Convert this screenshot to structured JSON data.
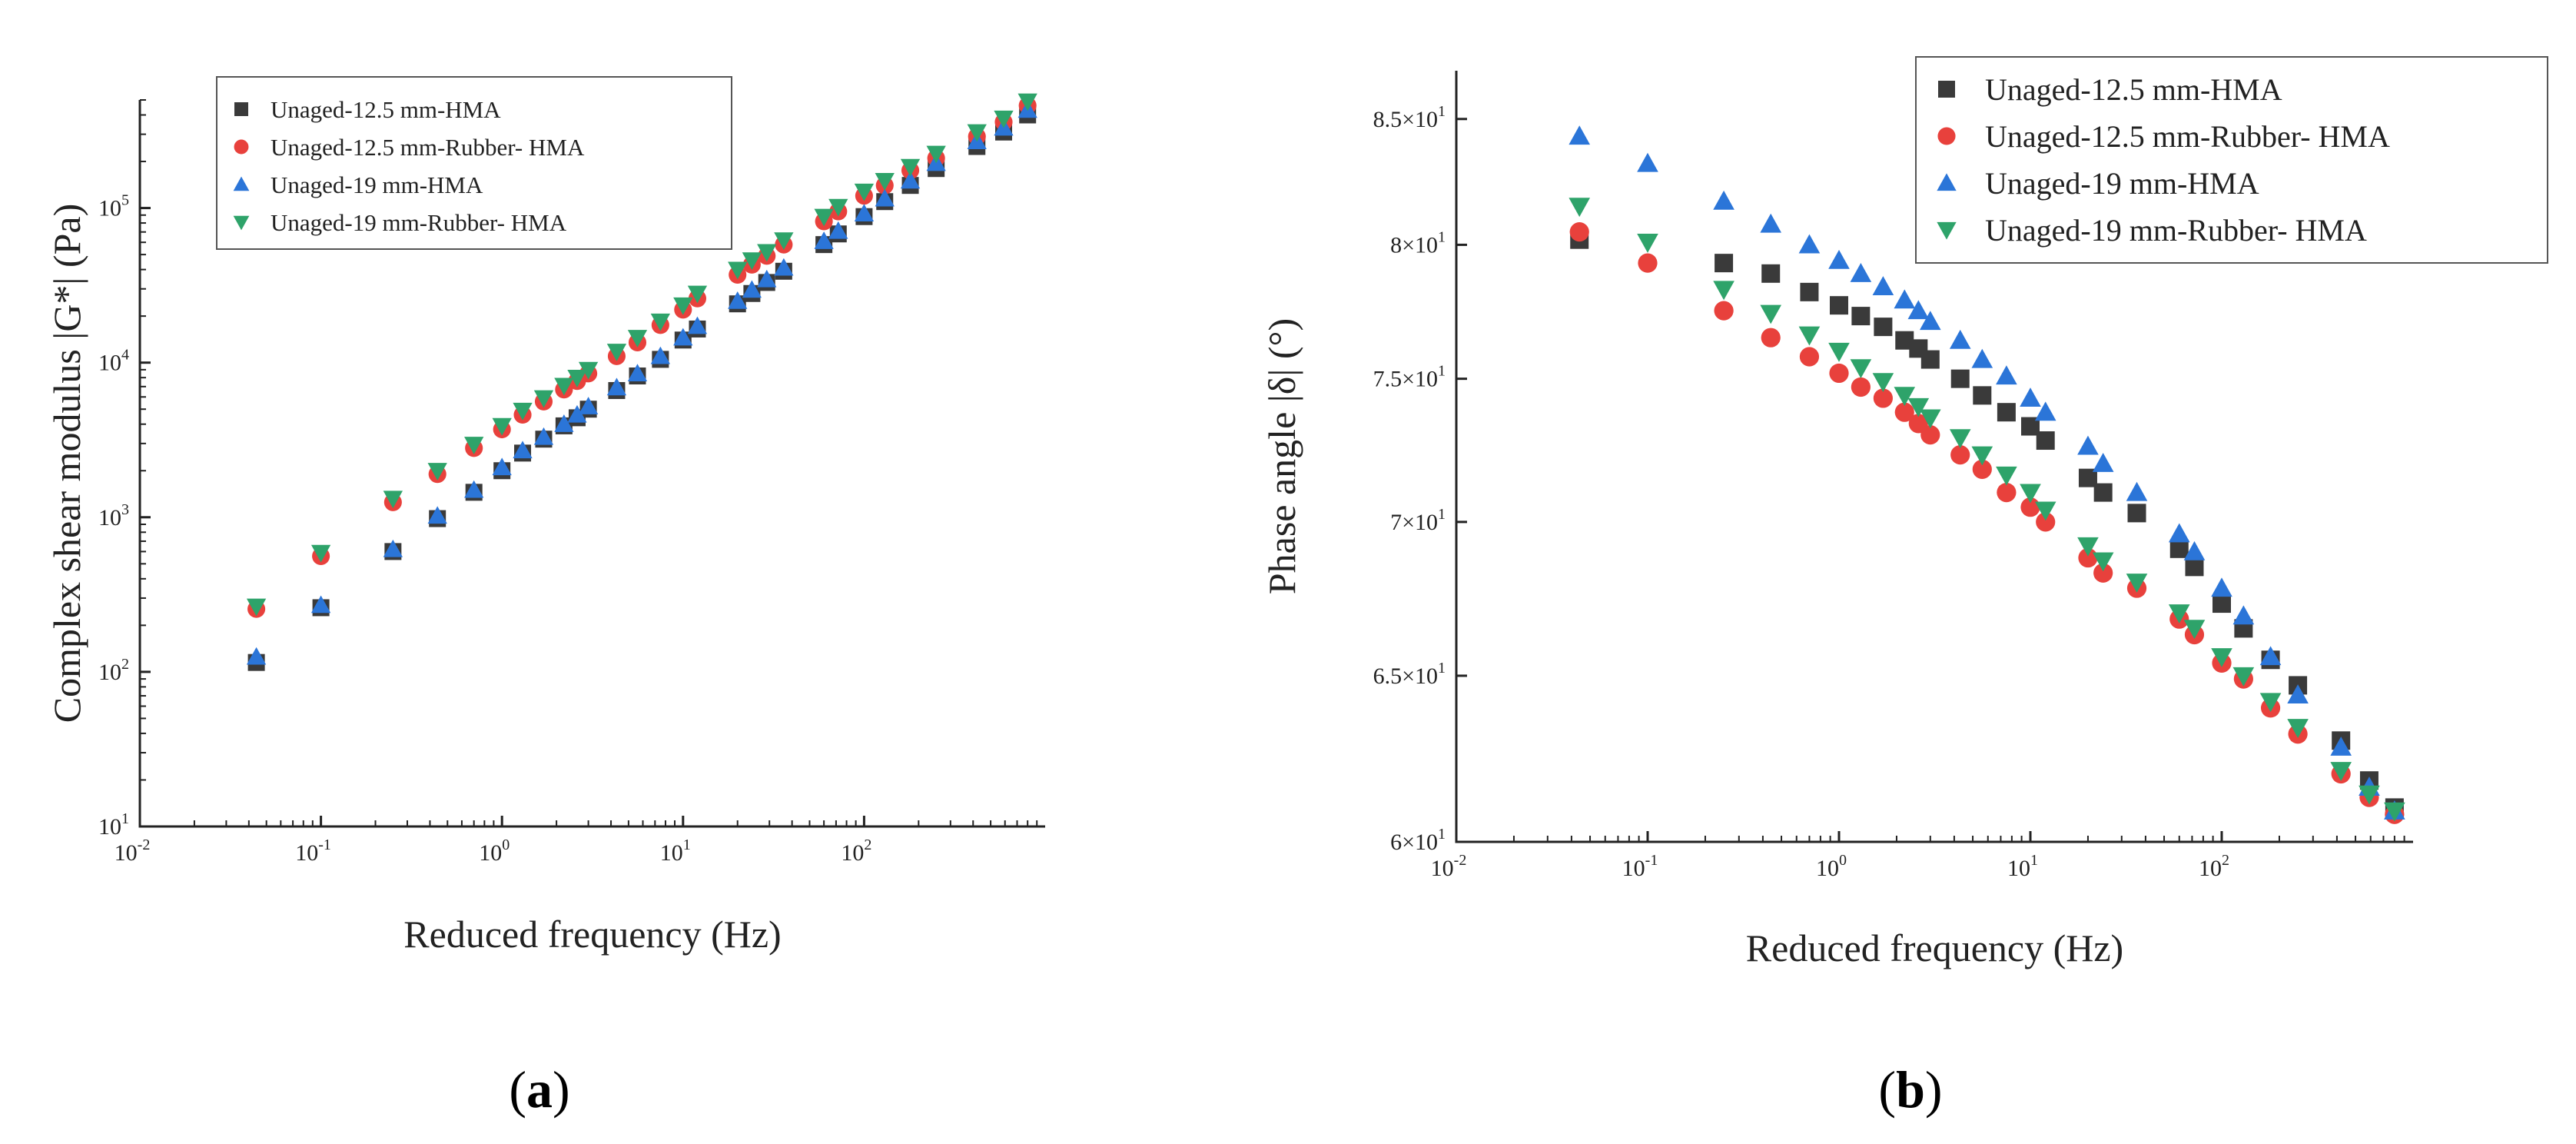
{
  "chart_data": [
    {
      "type": "scatter",
      "panel": "a",
      "caption": {
        "open": "(",
        "letter": "a",
        "close": ")"
      },
      "title": "",
      "xlabel": "Reduced frequency (Hz)",
      "ylabel": "Complex shear modulus |G*| (Pa)",
      "xscale": "log",
      "yscale": "log",
      "xlim": [
        0.01,
        1000
      ],
      "ylim": [
        10,
        500000
      ],
      "x_ticks": [
        {
          "base": "10",
          "exp": "-2",
          "value": 0.01
        },
        {
          "base": "10",
          "exp": "-1",
          "value": 0.1
        },
        {
          "base": "10",
          "exp": "0",
          "value": 1
        },
        {
          "base": "10",
          "exp": "1",
          "value": 10
        },
        {
          "base": "10",
          "exp": "2",
          "value": 100
        }
      ],
      "y_ticks": [
        {
          "base": "10",
          "exp": "1",
          "value": 10
        },
        {
          "base": "10",
          "exp": "2",
          "value": 100
        },
        {
          "base": "10",
          "exp": "3",
          "value": 1000
        },
        {
          "base": "10",
          "exp": "4",
          "value": 10000
        },
        {
          "base": "10",
          "exp": "5",
          "value": 100000
        }
      ],
      "legend_position": "top-left",
      "series": [
        {
          "name": "Unaged-12.5 mm-HMA",
          "marker": "square",
          "color": "#3a3a3a",
          "x": [
            0.044,
            0.1,
            0.25,
            0.44,
            0.7,
            1.0,
            1.3,
            1.7,
            2.2,
            2.6,
            3.0,
            4.3,
            5.6,
            7.5,
            10,
            12,
            20,
            24,
            29,
            36,
            60,
            72,
            100,
            130,
            180,
            250,
            420,
            590,
            800
          ],
          "y": [
            115,
            260,
            600,
            980,
            1450,
            2000,
            2600,
            3200,
            3900,
            4400,
            5000,
            6600,
            8200,
            10500,
            14000,
            16500,
            24000,
            28000,
            33000,
            39000,
            58000,
            68000,
            88000,
            110000,
            140000,
            180000,
            250000,
            310000,
            400000
          ]
        },
        {
          "name": "Unaged-12.5 mm-Rubber- HMA",
          "marker": "circle",
          "color": "#e8413c",
          "x": [
            0.044,
            0.1,
            0.25,
            0.44,
            0.7,
            1.0,
            1.3,
            1.7,
            2.2,
            2.6,
            3.0,
            4.3,
            5.6,
            7.5,
            10,
            12,
            20,
            24,
            29,
            36,
            60,
            72,
            100,
            130,
            180,
            250,
            420,
            590,
            800
          ],
          "y": [
            255,
            560,
            1250,
            1900,
            2800,
            3700,
            4600,
            5600,
            6700,
            7600,
            8500,
            11000,
            13500,
            17500,
            22000,
            26000,
            37000,
            43000,
            49000,
            58000,
            82000,
            95000,
            120000,
            140000,
            175000,
            210000,
            290000,
            360000,
            460000
          ]
        },
        {
          "name": "Unaged-19 mm-HMA",
          "marker": "triangle-up",
          "color": "#2b75d8",
          "x": [
            0.044,
            0.1,
            0.25,
            0.44,
            0.7,
            1.0,
            1.3,
            1.7,
            2.2,
            2.6,
            3.0,
            4.3,
            5.6,
            7.5,
            10,
            12,
            20,
            24,
            29,
            36,
            60,
            72,
            100,
            130,
            180,
            250,
            420,
            590,
            800
          ],
          "y": [
            125,
            270,
            620,
            1020,
            1500,
            2100,
            2700,
            3300,
            4000,
            4600,
            5200,
            6900,
            8500,
            11000,
            14500,
            17200,
            25000,
            29500,
            34500,
            41000,
            61000,
            71000,
            92000,
            115000,
            150000,
            195000,
            270000,
            330000,
            430000
          ]
        },
        {
          "name": "Unaged-19 mm-Rubber- HMA",
          "marker": "triangle-down",
          "color": "#2ea36a",
          "x": [
            0.044,
            0.1,
            0.25,
            0.44,
            0.7,
            1.0,
            1.3,
            1.7,
            2.2,
            2.6,
            3.0,
            4.3,
            5.6,
            7.5,
            10,
            12,
            20,
            24,
            29,
            36,
            60,
            72,
            100,
            130,
            180,
            250,
            420,
            590,
            800
          ],
          "y": [
            265,
            590,
            1320,
            2000,
            2950,
            3900,
            4900,
            5900,
            7100,
            8000,
            9000,
            11800,
            14500,
            18500,
            23500,
            28000,
            40000,
            46000,
            52000,
            62000,
            88000,
            102000,
            128000,
            150000,
            185000,
            225000,
            310000,
            380000,
            490000
          ]
        }
      ]
    },
    {
      "type": "scatter",
      "panel": "b",
      "caption": {
        "open": "(",
        "letter": "b",
        "close": ")"
      },
      "title": "",
      "xlabel": "Reduced frequency (Hz)",
      "ylabel": "Phase angle |δ| (°)",
      "xscale": "log",
      "yscale": "log",
      "xlim": [
        0.01,
        1000
      ],
      "ylim": [
        60,
        87
      ],
      "x_ticks": [
        {
          "base": "10",
          "exp": "-2",
          "value": 0.01
        },
        {
          "base": "10",
          "exp": "-1",
          "value": 0.1
        },
        {
          "base": "10",
          "exp": "0",
          "value": 1
        },
        {
          "base": "10",
          "exp": "1",
          "value": 10
        },
        {
          "base": "10",
          "exp": "2",
          "value": 100
        }
      ],
      "y_ticks": [
        {
          "base": "6×10",
          "exp": "1",
          "value": 60
        },
        {
          "base": "6.5×10",
          "exp": "1",
          "value": 65
        },
        {
          "base": "7×10",
          "exp": "1",
          "value": 70
        },
        {
          "base": "7.5×10",
          "exp": "1",
          "value": 75
        },
        {
          "base": "8×10",
          "exp": "1",
          "value": 80
        },
        {
          "base": "8.5×10",
          "exp": "1",
          "value": 85
        }
      ],
      "legend_position": "top-right",
      "series": [
        {
          "name": "Unaged-12.5 mm-HMA",
          "marker": "square",
          "color": "#3a3a3a",
          "x": [
            0.044,
            0.25,
            0.44,
            0.7,
            1.0,
            1.3,
            1.7,
            2.2,
            2.6,
            3.0,
            4.3,
            5.6,
            7.5,
            10,
            12,
            20,
            24,
            36,
            60,
            72,
            100,
            130,
            180,
            250,
            420,
            590,
            800
          ],
          "y": [
            80.2,
            79.3,
            78.9,
            78.2,
            77.7,
            77.3,
            76.9,
            76.4,
            76.1,
            75.7,
            75.0,
            74.4,
            73.8,
            73.3,
            72.8,
            71.5,
            71.0,
            70.3,
            69.1,
            68.5,
            67.3,
            66.5,
            65.5,
            64.7,
            63.0,
            61.8,
            61.0
          ]
        },
        {
          "name": "Unaged-12.5 mm-Rubber- HMA",
          "marker": "circle",
          "color": "#e8413c",
          "x": [
            0.044,
            0.1,
            0.25,
            0.44,
            0.7,
            1.0,
            1.3,
            1.7,
            2.2,
            2.6,
            3.0,
            4.3,
            5.6,
            7.5,
            10,
            12,
            20,
            24,
            36,
            60,
            72,
            100,
            130,
            180,
            250,
            420,
            590,
            800
          ],
          "y": [
            80.5,
            79.3,
            77.5,
            76.5,
            75.8,
            75.2,
            74.7,
            74.3,
            73.8,
            73.4,
            73.0,
            72.3,
            71.8,
            71.0,
            70.5,
            70.0,
            68.8,
            68.3,
            67.8,
            66.8,
            66.3,
            65.4,
            64.9,
            64.0,
            63.2,
            62.0,
            61.3,
            60.8
          ]
        },
        {
          "name": "Unaged-19 mm-HMA",
          "marker": "triangle-up",
          "color": "#2b75d8",
          "x": [
            0.044,
            0.1,
            0.25,
            0.44,
            0.7,
            1.0,
            1.3,
            1.7,
            2.2,
            2.6,
            3.0,
            4.3,
            5.6,
            7.5,
            10,
            12,
            20,
            24,
            36,
            60,
            72,
            100,
            130,
            180,
            250,
            420,
            590,
            800
          ],
          "y": [
            84.3,
            83.2,
            81.7,
            80.8,
            80.0,
            79.4,
            78.9,
            78.4,
            77.9,
            77.5,
            77.1,
            76.4,
            75.7,
            75.1,
            74.3,
            73.8,
            72.6,
            72.0,
            71.0,
            69.6,
            69.0,
            67.8,
            66.9,
            65.6,
            64.4,
            62.8,
            61.6,
            60.9
          ]
        },
        {
          "name": "Unaged-19 mm-Rubber- HMA",
          "marker": "triangle-down",
          "color": "#2ea36a",
          "x": [
            0.044,
            0.1,
            0.25,
            0.44,
            0.7,
            1.0,
            1.3,
            1.7,
            2.2,
            2.6,
            3.0,
            4.3,
            5.6,
            7.5,
            10,
            12,
            20,
            24,
            36,
            60,
            72,
            100,
            130,
            180,
            250,
            420,
            590,
            800
          ],
          "y": [
            81.5,
            80.1,
            78.3,
            77.4,
            76.6,
            76.0,
            75.4,
            74.9,
            74.4,
            74.0,
            73.6,
            72.9,
            72.3,
            71.6,
            71.0,
            70.4,
            69.2,
            68.7,
            68.0,
            67.0,
            66.5,
            65.6,
            65.0,
            64.2,
            63.4,
            62.1,
            61.4,
            60.9
          ]
        }
      ]
    }
  ]
}
